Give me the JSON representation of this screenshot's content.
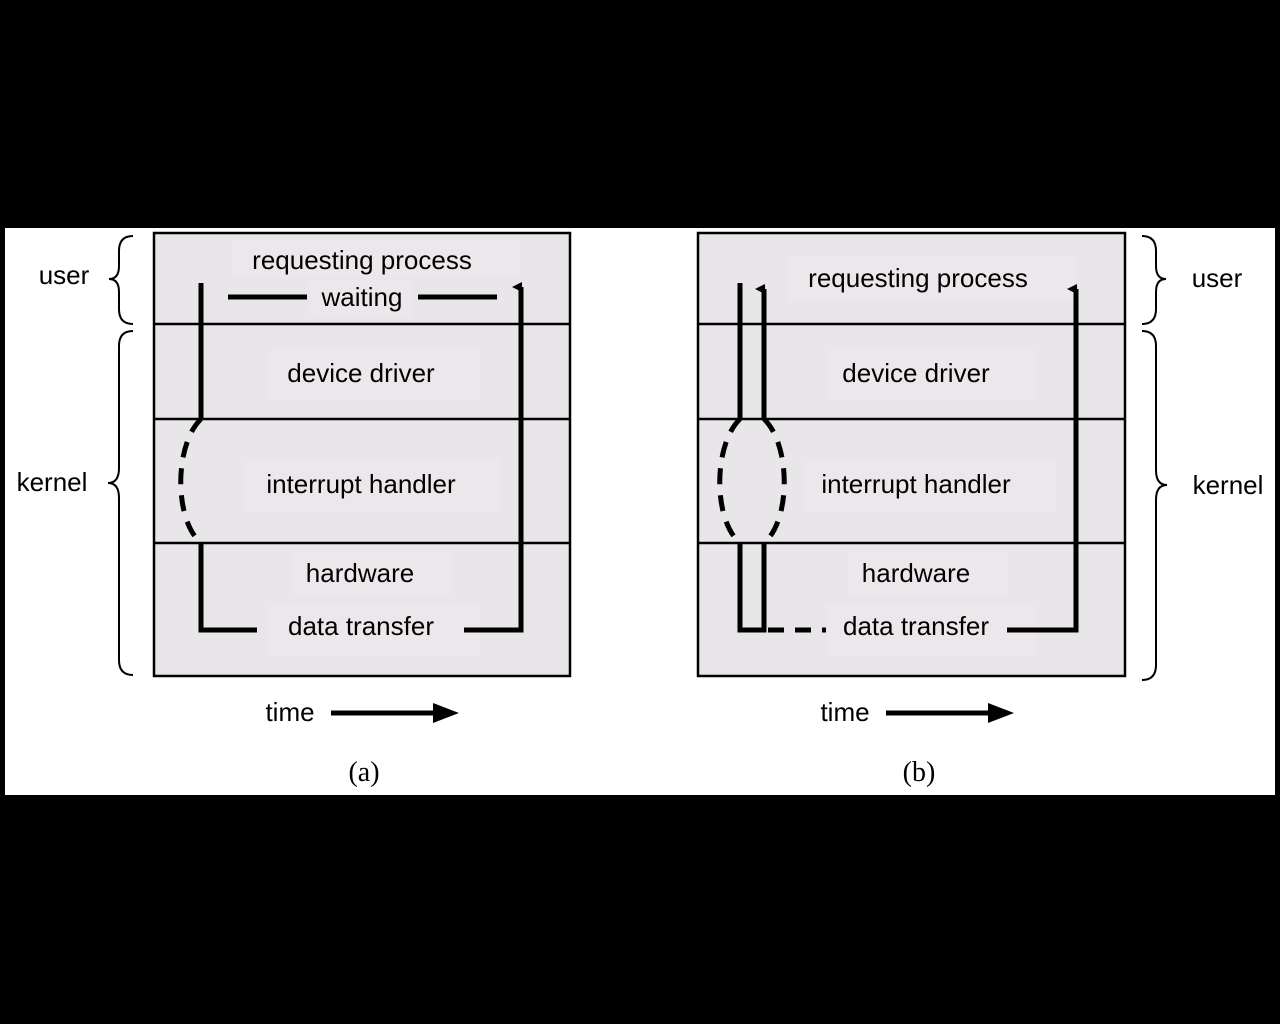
{
  "diagram_a": {
    "layer_user_line1": "requesting process",
    "layer_user_line2": "waiting",
    "layer_driver": "device driver",
    "layer_interrupt": "interrupt handler",
    "layer_hw_line1": "hardware",
    "layer_hw_line2": "data transfer",
    "brace_user": "user",
    "brace_kernel": "kernel",
    "time_label": "time",
    "caption": "(a)"
  },
  "diagram_b": {
    "layer_user": "requesting process",
    "layer_driver": "device driver",
    "layer_interrupt": "interrupt handler",
    "layer_hw_line1": "hardware",
    "layer_hw_line2": "data transfer",
    "brace_user": "user",
    "brace_kernel": "kernel",
    "time_label": "time",
    "caption": "(b)"
  }
}
